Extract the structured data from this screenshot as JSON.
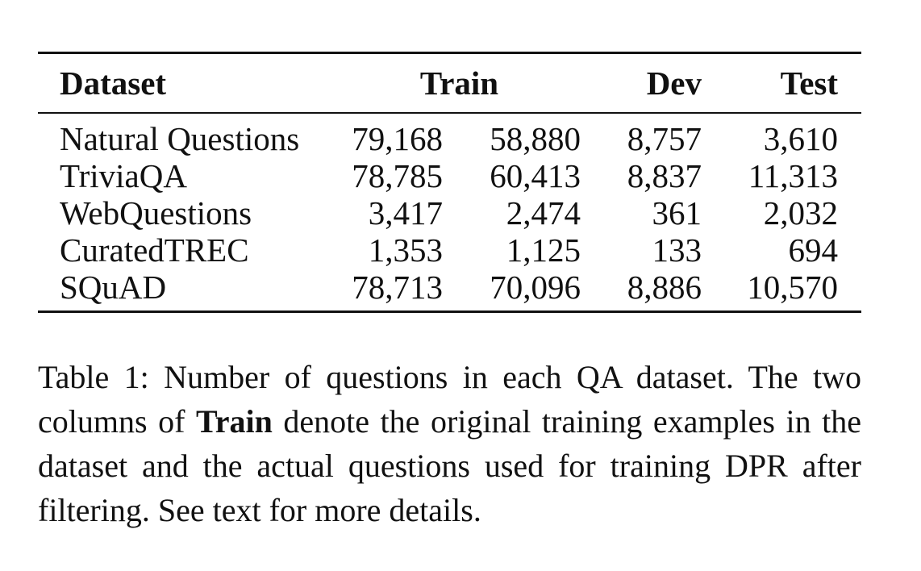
{
  "table": {
    "headers": {
      "dataset": "Dataset",
      "train": "Train",
      "dev": "Dev",
      "test": "Test"
    },
    "rows": [
      {
        "dataset": "Natural Questions",
        "train_original": "79,168",
        "train_filtered": "58,880",
        "dev": "8,757",
        "test": "3,610"
      },
      {
        "dataset": "TriviaQA",
        "train_original": "78,785",
        "train_filtered": "60,413",
        "dev": "8,837",
        "test": "11,313"
      },
      {
        "dataset": "WebQuestions",
        "train_original": "3,417",
        "train_filtered": "2,474",
        "dev": "361",
        "test": "2,032"
      },
      {
        "dataset": "CuratedTREC",
        "train_original": "1,353",
        "train_filtered": "1,125",
        "dev": "133",
        "test": "694"
      },
      {
        "dataset": "SQuAD",
        "train_original": "78,713",
        "train_filtered": "70,096",
        "dev": "8,886",
        "test": "10,570"
      }
    ]
  },
  "caption": {
    "label": "Table 1:",
    "text_before_bold": "Number of questions in each QA dataset. The two columns of",
    "bold": "Train",
    "text_after_bold": "denote the original training examples in the dataset and the actual questions used for training DPR after filtering. See text for more details."
  }
}
